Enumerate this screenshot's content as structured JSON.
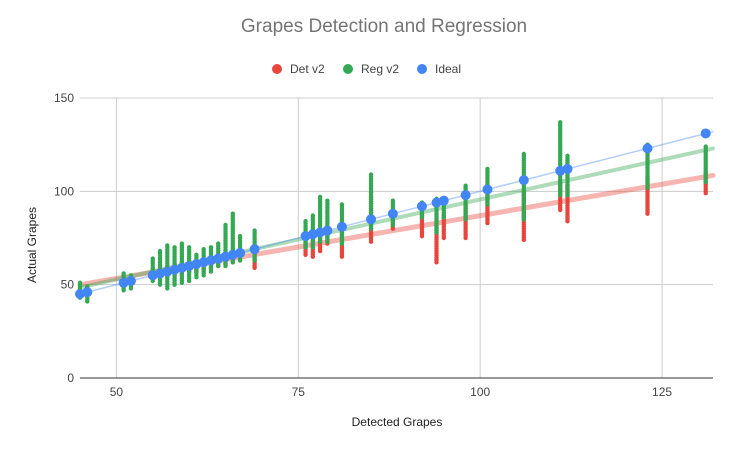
{
  "chart_data": {
    "type": "scatter",
    "title": "Grapes Detection and Regression",
    "xlabel": "Detected Grapes",
    "ylabel": "Actual Grapes",
    "xlim": [
      45,
      132
    ],
    "ylim": [
      0,
      150
    ],
    "x_ticks": [
      50,
      75,
      100,
      125
    ],
    "y_ticks": [
      0,
      50,
      100,
      150
    ],
    "x_tick_labels": [
      "50",
      "75",
      "100",
      "125"
    ],
    "y_tick_labels": [
      "0",
      "50",
      "100",
      "150"
    ],
    "grid": true,
    "legend_position": "top-center",
    "series": [
      {
        "name": "Det v2",
        "color": "#e8453c",
        "trendline": [
          [
            45,
            50
          ],
          [
            132,
            108.5
          ]
        ],
        "columns": [
          {
            "x": 46,
            "ymin": 44,
            "ymax": 49
          },
          {
            "x": 51,
            "ymin": 49,
            "ymax": 53
          },
          {
            "x": 55,
            "ymin": 54,
            "ymax": 58
          },
          {
            "x": 56,
            "ymin": 54,
            "ymax": 60
          },
          {
            "x": 57,
            "ymin": 55,
            "ymax": 60
          },
          {
            "x": 58,
            "ymin": 55,
            "ymax": 61
          },
          {
            "x": 59,
            "ymin": 56,
            "ymax": 62
          },
          {
            "x": 60,
            "ymin": 57,
            "ymax": 62
          },
          {
            "x": 61,
            "ymin": 57,
            "ymax": 63
          },
          {
            "x": 62,
            "ymin": 58,
            "ymax": 64
          },
          {
            "x": 63,
            "ymin": 59,
            "ymax": 65
          },
          {
            "x": 64,
            "ymin": 60,
            "ymax": 65
          },
          {
            "x": 65,
            "ymin": 61,
            "ymax": 66
          },
          {
            "x": 66,
            "ymin": 62,
            "ymax": 67
          },
          {
            "x": 67,
            "ymin": 63,
            "ymax": 68
          },
          {
            "x": 69,
            "ymin": 59,
            "ymax": 66
          },
          {
            "x": 76,
            "ymin": 66,
            "ymax": 74
          },
          {
            "x": 77,
            "ymin": 65,
            "ymax": 75
          },
          {
            "x": 78,
            "ymin": 68,
            "ymax": 76
          },
          {
            "x": 79,
            "ymin": 72,
            "ymax": 78
          },
          {
            "x": 81,
            "ymin": 65,
            "ymax": 79
          },
          {
            "x": 85,
            "ymin": 73,
            "ymax": 97
          },
          {
            "x": 88,
            "ymin": 80,
            "ymax": 90
          },
          {
            "x": 92,
            "ymin": 76,
            "ymax": 88
          },
          {
            "x": 94,
            "ymin": 62,
            "ymax": 84
          },
          {
            "x": 95,
            "ymin": 75,
            "ymax": 87
          },
          {
            "x": 98,
            "ymin": 75,
            "ymax": 93
          },
          {
            "x": 101,
            "ymin": 83,
            "ymax": 98
          },
          {
            "x": 106,
            "ymin": 74,
            "ymax": 100
          },
          {
            "x": 111,
            "ymin": 90,
            "ymax": 106
          },
          {
            "x": 112,
            "ymin": 84,
            "ymax": 103
          },
          {
            "x": 123,
            "ymin": 88,
            "ymax": 108
          },
          {
            "x": 131,
            "ymin": 99,
            "ymax": 110
          }
        ]
      },
      {
        "name": "Reg v2",
        "color": "#34a853",
        "trendline": [
          [
            45,
            48.5
          ],
          [
            132,
            123
          ]
        ],
        "columns": [
          {
            "x": 45,
            "ymin": 43,
            "ymax": 51
          },
          {
            "x": 46,
            "ymin": 41,
            "ymax": 49
          },
          {
            "x": 51,
            "ymin": 47,
            "ymax": 56
          },
          {
            "x": 52,
            "ymin": 48,
            "ymax": 55
          },
          {
            "x": 55,
            "ymin": 52,
            "ymax": 64
          },
          {
            "x": 56,
            "ymin": 50,
            "ymax": 68
          },
          {
            "x": 57,
            "ymin": 48,
            "ymax": 71
          },
          {
            "x": 58,
            "ymin": 50,
            "ymax": 70
          },
          {
            "x": 59,
            "ymin": 51,
            "ymax": 72
          },
          {
            "x": 60,
            "ymin": 52,
            "ymax": 70
          },
          {
            "x": 61,
            "ymin": 54,
            "ymax": 66
          },
          {
            "x": 62,
            "ymin": 55,
            "ymax": 69
          },
          {
            "x": 63,
            "ymin": 57,
            "ymax": 70
          },
          {
            "x": 64,
            "ymin": 60,
            "ymax": 72
          },
          {
            "x": 65,
            "ymin": 60,
            "ymax": 82
          },
          {
            "x": 66,
            "ymin": 62,
            "ymax": 88
          },
          {
            "x": 67,
            "ymin": 63,
            "ymax": 76
          },
          {
            "x": 69,
            "ymin": 63,
            "ymax": 79
          },
          {
            "x": 76,
            "ymin": 70,
            "ymax": 84
          },
          {
            "x": 77,
            "ymin": 70,
            "ymax": 87
          },
          {
            "x": 78,
            "ymin": 73,
            "ymax": 97
          },
          {
            "x": 79,
            "ymin": 73,
            "ymax": 95
          },
          {
            "x": 81,
            "ymin": 72,
            "ymax": 93
          },
          {
            "x": 85,
            "ymin": 80,
            "ymax": 109
          },
          {
            "x": 88,
            "ymin": 82,
            "ymax": 95
          },
          {
            "x": 92,
            "ymin": 86,
            "ymax": 94
          },
          {
            "x": 94,
            "ymin": 78,
            "ymax": 96
          },
          {
            "x": 95,
            "ymin": 86,
            "ymax": 96
          },
          {
            "x": 98,
            "ymin": 85,
            "ymax": 103
          },
          {
            "x": 101,
            "ymin": 93,
            "ymax": 112
          },
          {
            "x": 106,
            "ymin": 85,
            "ymax": 120
          },
          {
            "x": 111,
            "ymin": 98,
            "ymax": 137
          },
          {
            "x": 112,
            "ymin": 98,
            "ymax": 119
          },
          {
            "x": 123,
            "ymin": 102,
            "ymax": 125
          },
          {
            "x": 131,
            "ymin": 105,
            "ymax": 124
          }
        ]
      },
      {
        "name": "Ideal",
        "color": "#4285f4",
        "trendline": [
          [
            45,
            45
          ],
          [
            132,
            132
          ]
        ],
        "points": [
          45,
          46,
          51,
          52,
          55,
          56,
          57,
          58,
          59,
          60,
          61,
          62,
          63,
          64,
          65,
          66,
          67,
          69,
          76,
          77,
          78,
          79,
          81,
          85,
          88,
          92,
          94,
          95,
          98,
          101,
          106,
          111,
          112,
          123,
          131
        ]
      }
    ]
  }
}
